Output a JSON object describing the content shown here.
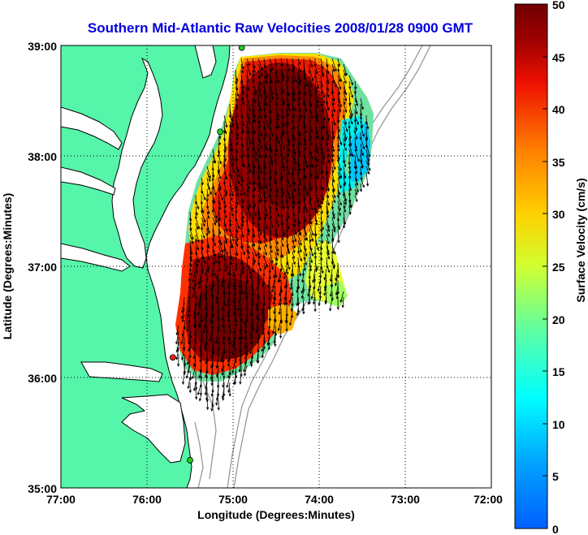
{
  "title": "Southern Mid-Atlantic Raw Velocities 2008/01/28 0900 GMT",
  "map": {
    "xlabel": "Longitude (Degrees:Minutes)",
    "ylabel": "Latitude (Degrees:Minutes)",
    "x_ticks": [
      "77:00",
      "76:00",
      "75:00",
      "74:00",
      "73:00",
      "72:00"
    ],
    "y_ticks": [
      "39:00",
      "38:00",
      "37:00",
      "36:00",
      "35:00"
    ],
    "lon_range": [
      -77,
      -72
    ],
    "lat_range": [
      35,
      39
    ],
    "land_color": "#55f5aa",
    "ocean_color": "#ffffff",
    "grid": "dotted",
    "stations": [
      {
        "lon": -74.9,
        "lat": 38.98,
        "color": "#22cc22"
      },
      {
        "lon": -75.15,
        "lat": 38.22,
        "color": "#22cc22"
      },
      {
        "lon": -75.7,
        "lat": 36.18,
        "color": "#ee2222"
      },
      {
        "lon": -75.5,
        "lat": 35.25,
        "color": "#22cc22"
      }
    ]
  },
  "colorbar": {
    "label": "Surface Velocity (cm/s)",
    "min": 0,
    "max": 50,
    "ticks": [
      "0",
      "5",
      "10",
      "15",
      "20",
      "25",
      "30",
      "35",
      "40",
      "45",
      "50"
    ],
    "colormap": "jet"
  }
}
